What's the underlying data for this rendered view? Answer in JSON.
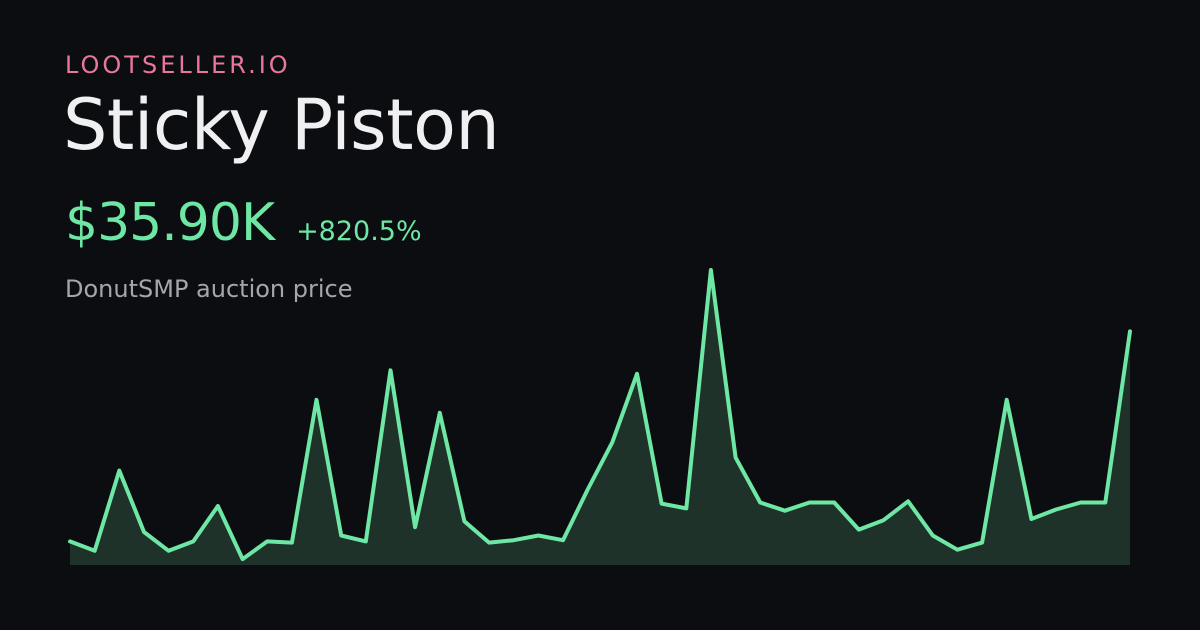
{
  "brand": "LOOTSELLER.IO",
  "item_name": "Sticky Piston",
  "price": "$35.90K",
  "change": "+820.5%",
  "subtitle": "DonutSMP auction price",
  "colors": {
    "brand": "#e8779c",
    "accent": "#6ee7a5",
    "background": "#0c0d10",
    "area_fill": "#1f3229"
  },
  "chart_data": {
    "type": "area",
    "title": "",
    "xlabel": "",
    "ylabel": "",
    "grid": false,
    "legend": "none",
    "ylim": [
      0,
      2500
    ],
    "series": [
      {
        "values": [
          200,
          120,
          800,
          280,
          120,
          200,
          500,
          50,
          200,
          190,
          1400,
          250,
          200,
          1650,
          320,
          1290,
          370,
          190,
          210,
          250,
          210,
          640,
          1040,
          1620,
          520,
          480,
          2500,
          910,
          530,
          460,
          530,
          530,
          300,
          380,
          540,
          250,
          130,
          190,
          1400,
          390,
          470,
          530,
          530,
          1980
        ]
      }
    ]
  }
}
